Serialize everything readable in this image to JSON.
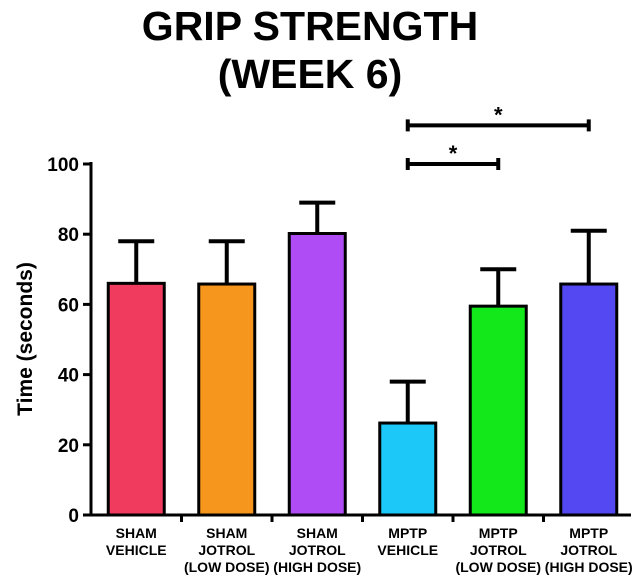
{
  "chart_data": {
    "type": "bar",
    "title_lines": [
      "GRIP STRENGTH",
      "(WEEK 6)"
    ],
    "ylabel": "Time (seconds)",
    "xlabel": "",
    "ylim": [
      0,
      100
    ],
    "yticks": [
      "0",
      "20",
      "40",
      "60",
      "80",
      "100"
    ],
    "grid": false,
    "categories": [
      [
        "SHAM",
        "VEHICLE"
      ],
      [
        "SHAM",
        "JOTROL",
        "(LOW DOSE)"
      ],
      [
        "SHAM",
        "JOTROL",
        "(HIGH DOSE)"
      ],
      [
        "MPTP",
        "VEHICLE"
      ],
      [
        "MPTP",
        "JOTROL",
        "(LOW DOSE)"
      ],
      [
        "MPTP",
        "JOTROL",
        "(HIGH DOSE)"
      ]
    ],
    "values": [
      66,
      65.8,
      80.2,
      26.2,
      59.5,
      65.8
    ],
    "error_upper": [
      78,
      78,
      89,
      38,
      70,
      81
    ],
    "colors": [
      "#f03a5e",
      "#f7961c",
      "#b04cf5",
      "#1cc8f7",
      "#12e81a",
      "#5448f2"
    ],
    "significance": [
      {
        "from": 3,
        "to": 4,
        "label": "*",
        "level": 100
      },
      {
        "from": 3,
        "to": 5,
        "label": "*",
        "level": 111
      }
    ]
  }
}
